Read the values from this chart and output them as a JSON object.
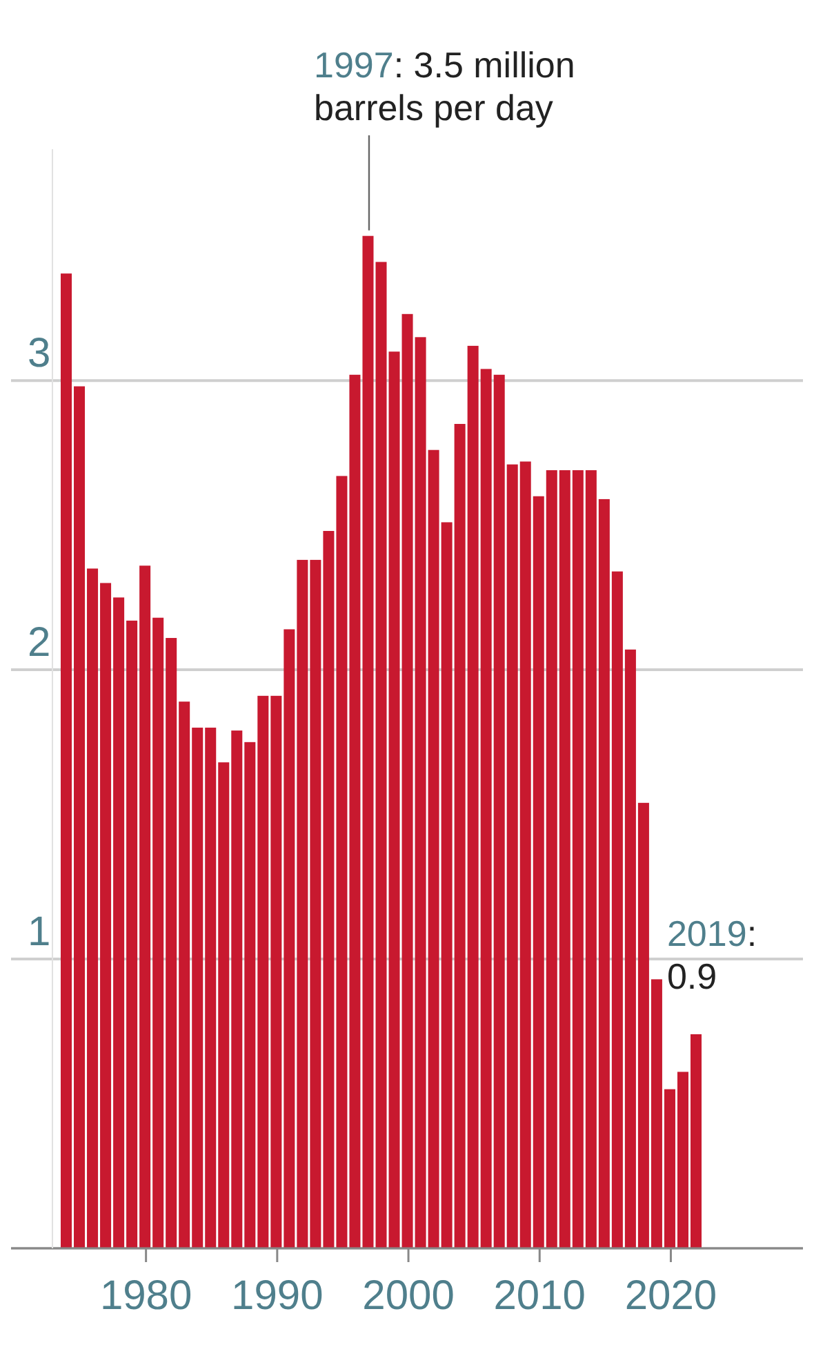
{
  "chart_data": {
    "type": "bar",
    "x": [
      1974,
      1975,
      1976,
      1977,
      1978,
      1979,
      1980,
      1981,
      1982,
      1983,
      1984,
      1985,
      1986,
      1987,
      1988,
      1989,
      1990,
      1991,
      1992,
      1993,
      1994,
      1995,
      1996,
      1997,
      1998,
      1999,
      2000,
      2001,
      2002,
      2003,
      2004,
      2005,
      2006,
      2007,
      2008,
      2009,
      2010,
      2011,
      2012,
      2013,
      2014,
      2015,
      2016,
      2017,
      2018,
      2019,
      2020,
      2021,
      2022
    ],
    "values": [
      3.37,
      2.98,
      2.35,
      2.3,
      2.25,
      2.17,
      2.36,
      2.18,
      2.11,
      1.89,
      1.8,
      1.8,
      1.68,
      1.79,
      1.75,
      1.91,
      1.91,
      2.14,
      2.38,
      2.38,
      2.48,
      2.67,
      3.02,
      3.5,
      3.41,
      3.1,
      3.23,
      3.15,
      2.76,
      2.51,
      2.85,
      3.12,
      3.04,
      3.02,
      2.71,
      2.72,
      2.6,
      2.69,
      2.69,
      2.69,
      2.69,
      2.59,
      2.34,
      2.07,
      1.54,
      0.93,
      0.55,
      0.61,
      0.74
    ],
    "color": "#c8192f",
    "xlim": [
      1973.5,
      2022.5
    ],
    "xticks": [
      1980,
      1990,
      2000,
      2010,
      2020
    ],
    "ylim": [
      0,
      3.8
    ],
    "yticks": [
      {
        "value": 0,
        "label": null
      },
      1,
      2,
      3
    ],
    "grid": "y",
    "annotations": [
      {
        "text": "1997: 3.5 million barrels per day",
        "x": 1997,
        "y": 3.5
      },
      {
        "text": "2019: 0.9",
        "x": 2019,
        "y": 0.93
      }
    ]
  }
}
